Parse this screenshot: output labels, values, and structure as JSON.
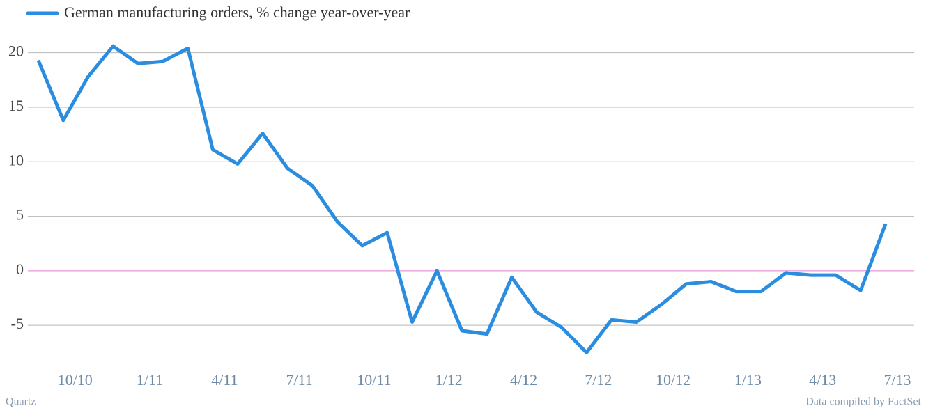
{
  "chart_data": {
    "type": "line",
    "series": [
      {
        "name": "German manufacturing orders, % change year-over-year",
        "color": "#2a8ddf",
        "values": [
          19.3,
          13.8,
          17.8,
          20.6,
          19.0,
          19.2,
          20.4,
          11.1,
          9.8,
          12.6,
          9.4,
          7.8,
          4.5,
          2.3,
          3.5,
          -4.7,
          0.0,
          -5.5,
          -5.8,
          -0.6,
          -3.8,
          -5.2,
          -7.5,
          -4.5,
          -4.7,
          -3.1,
          -1.2,
          -1.0,
          -1.9,
          -1.9,
          -0.2,
          -0.4,
          -0.4,
          -1.8,
          4.3
        ]
      }
    ],
    "categories": [
      null,
      "10/10",
      null,
      null,
      "1/11",
      null,
      null,
      "4/11",
      null,
      null,
      "7/11",
      null,
      null,
      "10/11",
      null,
      null,
      "1/12",
      null,
      null,
      "4/12",
      null,
      null,
      "7/12",
      null,
      null,
      "10/12",
      null,
      null,
      "1/13",
      null,
      null,
      "4/13",
      null,
      null,
      "7/13"
    ],
    "ylim": [
      -8.5,
      21
    ],
    "yticks": [
      -5,
      0,
      5,
      10,
      15,
      20
    ],
    "grid": true,
    "zero_line_color": "#e27ccb",
    "source_left": "Quartz",
    "source_right": "Data compiled by FactSet"
  }
}
